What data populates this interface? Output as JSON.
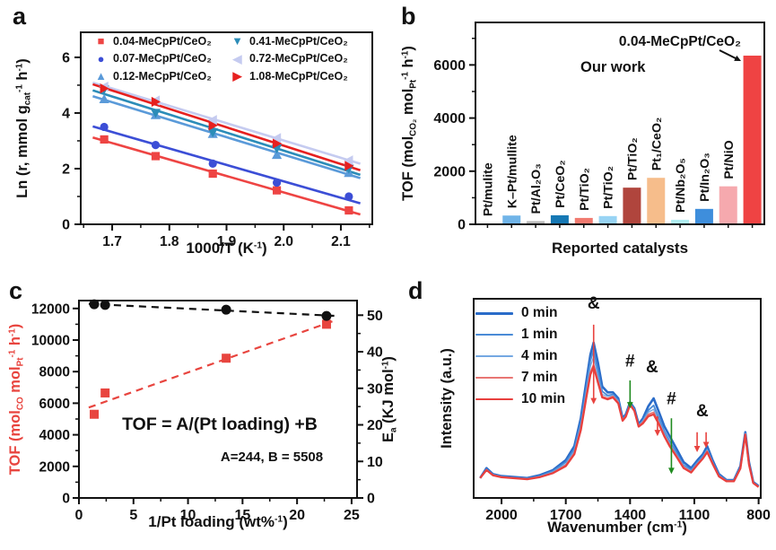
{
  "chart_data": {
    "a": {
      "type": "scatter",
      "panel_label": "a",
      "x_label_rich": "1000/T (K^-1^)",
      "y_label_rich": "Ln (r, mmol g~cat~^-1^ h^-1^)",
      "x_ticks": [
        1.7,
        1.8,
        1.9,
        2.0,
        2.1
      ],
      "x_range": [
        1.645,
        2.155
      ],
      "y_ticks": [
        0,
        2,
        4,
        6
      ],
      "y_range": [
        0,
        6.9
      ],
      "x": [
        1.686,
        1.776,
        1.876,
        1.988,
        2.114
      ],
      "series": [
        {
          "name": "0.04-MeCpPt/CeO₂",
          "marker": "square",
          "color": "#ee4443",
          "values": [
            3.05,
            2.45,
            1.82,
            1.22,
            0.5
          ]
        },
        {
          "name": "0.07-MeCpPt/CeO₂",
          "marker": "circle",
          "color": "#3c4ed6",
          "values": [
            3.5,
            2.85,
            2.18,
            1.5,
            1.0
          ]
        },
        {
          "name": "0.12-MeCpPt/CeO₂",
          "marker": "triangle-up",
          "color": "#5a9ad9",
          "values": [
            4.5,
            3.93,
            3.25,
            2.5,
            1.85
          ]
        },
        {
          "name": "0.41-MeCpPt/CeO₂",
          "marker": "triangle-down",
          "color": "#2b8cb8",
          "values": [
            4.85,
            4.0,
            3.3,
            2.72,
            2.0
          ]
        },
        {
          "name": "0.72-MeCpPt/CeO₂",
          "marker": "triangle-left",
          "color": "#c5cbf0",
          "values": [
            4.95,
            4.45,
            3.75,
            3.1,
            2.3
          ]
        },
        {
          "name": "1.08-MeCpPt/CeO₂",
          "marker": "triangle-right",
          "color": "#e6201f",
          "values": [
            4.88,
            4.4,
            3.55,
            2.9,
            2.1
          ]
        }
      ]
    },
    "b": {
      "type": "bar",
      "panel_label": "b",
      "x_label": "Reported catalysts",
      "y_label_rich": "TOF (mol~CO₂~ mol~Pt~^-1^ h^-1^)",
      "y_ticks": [
        0,
        2000,
        4000,
        6000
      ],
      "y_range": [
        0,
        7600
      ],
      "bars": [
        {
          "label": "Pt/mulite",
          "value": 30,
          "color": "#c9c9ee"
        },
        {
          "label": "K–Pt/mullite",
          "value": 330,
          "color": "#70b4e8"
        },
        {
          "label": "Pt/Al₂O₃",
          "value": 120,
          "color": "#b9b9b9"
        },
        {
          "label": "Pt/CeO₂",
          "value": 340,
          "color": "#1678b4"
        },
        {
          "label": "Pt/TiO₂",
          "value": 240,
          "color": "#f17a70"
        },
        {
          "label": "Pt/TiO₂",
          "value": 310,
          "color": "#98d4f4"
        },
        {
          "label": "Pt/TiO₂",
          "value": 1380,
          "color": "#b0453d"
        },
        {
          "label": "Pt₁/CeO₂",
          "value": 1750,
          "color": "#f6bd8b"
        },
        {
          "label": "Pt/Nb₂O₅",
          "value": 170,
          "color": "#b0eef2"
        },
        {
          "label": "Pt/In₂O₃",
          "value": 580,
          "color": "#3e8edc"
        },
        {
          "label": "Pt/NiO",
          "value": 1430,
          "color": "#f6a9ae"
        },
        {
          "label": "",
          "value": 6350,
          "color": "#ef4343"
        }
      ],
      "annotation": {
        "line1": "0.04-MeCpPt/CeO₂",
        "line2": "Our work"
      }
    },
    "c": {
      "type": "dual-axis-scatter",
      "panel_label": "c",
      "x_label_rich": "1/Pt loading (wt%^-1^)",
      "y_left_label_rich": "TOF (mol~CO~ mol~Pt~^-1^ h^-1^)",
      "y_right_label_rich": "E~a~ (KJ mol^-1^)",
      "x_ticks": [
        0,
        5,
        10,
        15,
        20,
        25
      ],
      "x_range": [
        0,
        25.5
      ],
      "y_left_ticks": [
        0,
        2000,
        4000,
        6000,
        8000,
        10000,
        12000
      ],
      "y_left_range": [
        0,
        12500
      ],
      "y_right_ticks": [
        0,
        10,
        20,
        30,
        40,
        50
      ],
      "y_right_range": [
        0,
        54
      ],
      "x": [
        1.4,
        2.4,
        13.5,
        22.7
      ],
      "tof_values": [
        5300,
        6650,
        8850,
        11000
      ],
      "ea_values": [
        53.0,
        52.8,
        51.5,
        49.8
      ],
      "tof_color": "#e8453f",
      "ea_color": "#111111",
      "equation": "TOF = A/(Pt loading) +B",
      "equation_params": "A=244, B = 5508"
    },
    "d": {
      "type": "line",
      "panel_label": "d",
      "x_label_rich": "Wavenumber (cm^-1^)",
      "y_label_rich": "Intensity (a.u.)",
      "x_ticks": [
        2000,
        1700,
        1400,
        1100,
        800
      ],
      "x_max": 2130,
      "x_min": 790,
      "y_range": [
        0,
        100
      ],
      "x": [
        2100,
        2070,
        2040,
        2000,
        1940,
        1880,
        1820,
        1760,
        1700,
        1660,
        1630,
        1605,
        1585,
        1570,
        1550,
        1530,
        1505,
        1480,
        1455,
        1435,
        1420,
        1400,
        1380,
        1360,
        1340,
        1315,
        1290,
        1265,
        1240,
        1215,
        1185,
        1150,
        1115,
        1085,
        1060,
        1040,
        1015,
        985,
        950,
        915,
        885,
        862,
        845,
        825,
        800
      ],
      "series": [
        {
          "name": "0 min",
          "color": "#2a6cc9",
          "width": 2.6,
          "values": [
            10,
            15,
            12,
            11,
            10.5,
            10,
            11.5,
            14,
            19,
            26,
            40,
            58,
            72,
            78,
            68,
            56,
            53,
            53,
            50,
            40,
            42,
            48,
            45,
            37,
            40,
            46,
            50,
            43,
            36,
            31,
            25,
            18,
            15,
            19,
            22,
            26,
            19,
            12,
            9,
            9,
            16,
            33,
            18,
            8,
            6
          ]
        },
        {
          "name": "1 min",
          "color": "#4a8bd6",
          "width": 1.8,
          "values": [
            10,
            14.5,
            11.8,
            10.8,
            10.2,
            9.8,
            11,
            13.5,
            18,
            24.5,
            38,
            55,
            69,
            74,
            64,
            53.5,
            51.5,
            52,
            49,
            39.5,
            41.5,
            47.5,
            44.5,
            36.5,
            39,
            44,
            46.5,
            40,
            33.5,
            28.5,
            23,
            16.5,
            14,
            18,
            21,
            24.5,
            18,
            11.5,
            8.8,
            8.8,
            15.5,
            32.5,
            17.5,
            7.8,
            5.8
          ]
        },
        {
          "name": "4 min",
          "color": "#74a8e2",
          "width": 1.3,
          "values": [
            10,
            14.2,
            11.6,
            10.6,
            10,
            9.6,
            10.8,
            13,
            17,
            23.5,
            36,
            53,
            66,
            71,
            61,
            52,
            51,
            51.5,
            48.5,
            39.2,
            41.2,
            47.2,
            44.2,
            36.2,
            38.5,
            43,
            44.5,
            38.5,
            32.5,
            27.5,
            22,
            16,
            13.5,
            17.5,
            20.5,
            24,
            17.8,
            11.2,
            8.7,
            8.7,
            15.2,
            32.2,
            17.2,
            7.7,
            5.7
          ]
        },
        {
          "name": "7 min",
          "color": "#e87673",
          "width": 1.7,
          "values": [
            10,
            14,
            11.5,
            10.5,
            10,
            9.5,
            10.6,
            12.6,
            16.5,
            22.5,
            35,
            51,
            63,
            67,
            59,
            51,
            50,
            51,
            48,
            39,
            41,
            47,
            44,
            36,
            38,
            42,
            43,
            37.5,
            31.5,
            26.5,
            21.5,
            15.5,
            13,
            17,
            20,
            23.5,
            17.5,
            11,
            8.5,
            8.5,
            15,
            32,
            17,
            7.6,
            5.6
          ]
        },
        {
          "name": "10 min",
          "color": "#e8403e",
          "width": 2.3,
          "values": [
            10,
            14,
            11.4,
            10.4,
            9.9,
            9.4,
            10.5,
            12.5,
            16,
            22,
            34,
            50,
            62,
            66,
            58,
            50.5,
            49.5,
            50.5,
            47.5,
            38.8,
            40.8,
            46.8,
            43.8,
            35.8,
            37.5,
            41,
            42,
            37,
            31,
            26,
            21,
            15,
            12.8,
            16.8,
            19.8,
            23,
            17.2,
            10.8,
            8.4,
            8.4,
            14.8,
            31.8,
            16.8,
            7.5,
            5.5
          ]
        }
      ],
      "legend_line_heights": [
        3,
        2,
        1.5,
        2,
        2.5
      ],
      "annotations": [
        {
          "text": "&",
          "color": "#e8433f",
          "x": 1570,
          "y": 95
        },
        {
          "text": "#",
          "color": "#1f8b1f",
          "x": 1400,
          "y": 66
        },
        {
          "text": "&",
          "color": "#e8433f",
          "x": 1297,
          "y": 63
        },
        {
          "text": "#",
          "color": "#1f8b1f",
          "x": 1207,
          "y": 47
        },
        {
          "text": "&",
          "color": "#e8433f",
          "x": 1063,
          "y": 41
        }
      ],
      "arrows": [
        {
          "color": "#e8433f",
          "x": 1570,
          "y1": 87,
          "y2": 47
        },
        {
          "color": "#1f8b1f",
          "x": 1400,
          "y1": 59,
          "y2": 45
        },
        {
          "color": "#e8433f",
          "x": 1272,
          "y1": 41,
          "y2": 31
        },
        {
          "color": "#1f8b1f",
          "x": 1207,
          "y1": 40,
          "y2": 12
        },
        {
          "color": "#e8433f",
          "x": 1087,
          "y1": 33,
          "y2": 23
        },
        {
          "color": "#e8433f",
          "x": 1045,
          "y1": 33,
          "y2": 25
        }
      ]
    }
  }
}
